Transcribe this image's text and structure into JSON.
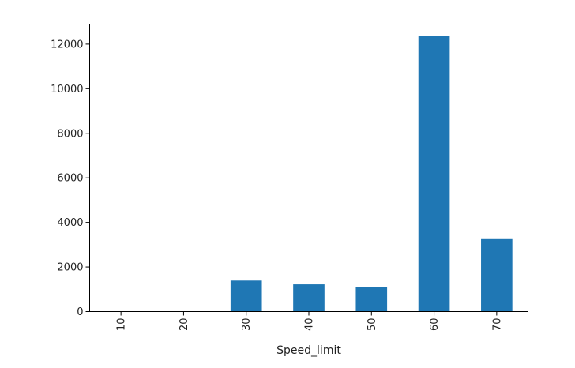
{
  "chart_data": {
    "type": "bar",
    "title": "",
    "xlabel": "Speed_limit",
    "ylabel": "",
    "categories": [
      "10",
      "20",
      "30",
      "40",
      "50",
      "60",
      "70"
    ],
    "values": [
      3,
      10,
      1390,
      1220,
      1100,
      12380,
      3250
    ],
    "ylim": [
      0,
      12900
    ],
    "yticks": [
      0,
      2000,
      4000,
      6000,
      8000,
      10000,
      12000
    ],
    "ytick_labels": [
      "0",
      "2000",
      "4000",
      "6000",
      "8000",
      "10000",
      "12000"
    ],
    "x_tick_rotation": "vertical",
    "grid": false,
    "legend": "none",
    "bar_color": "#1f77b4"
  }
}
